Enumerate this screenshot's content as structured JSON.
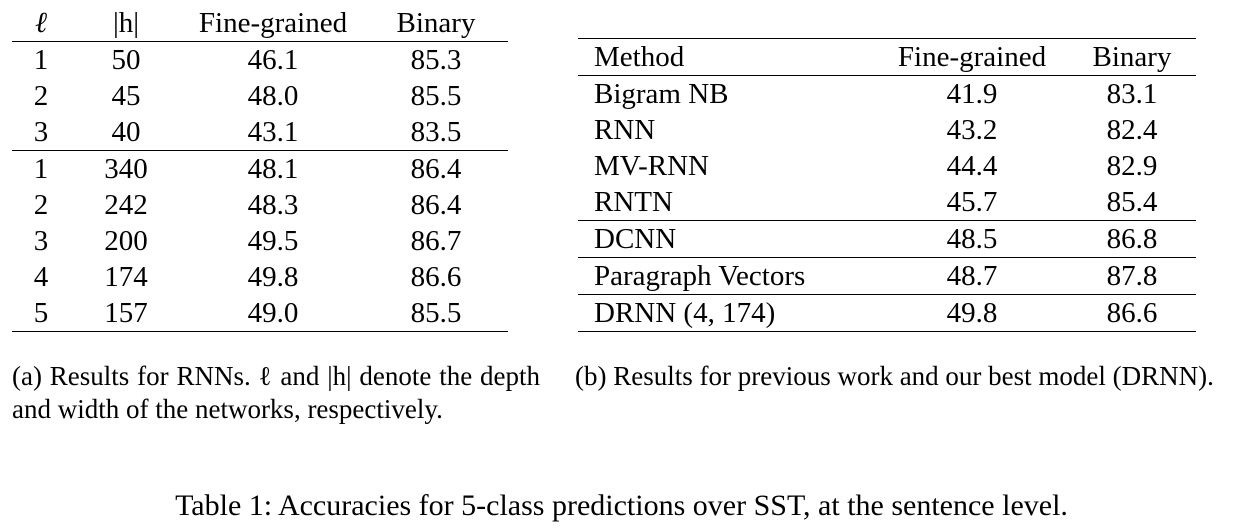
{
  "table_a": {
    "headers": [
      "ℓ",
      "|h|",
      "Fine-grained",
      "Binary"
    ],
    "rows": [
      [
        "1",
        "50",
        "46.1",
        "85.3"
      ],
      [
        "2",
        "45",
        "48.0",
        "85.5"
      ],
      [
        "3",
        "40",
        "43.1",
        "83.5"
      ],
      [
        "1",
        "340",
        "48.1",
        "86.4"
      ],
      [
        "2",
        "242",
        "48.3",
        "86.4"
      ],
      [
        "3",
        "200",
        "49.5",
        "86.7"
      ],
      [
        "4",
        "174",
        "49.8",
        "86.6"
      ],
      [
        "5",
        "157",
        "49.0",
        "85.5"
      ]
    ],
    "caption": "(a) Results for RNNs. ℓ and |h| denote the depth and width of the networks, respectively."
  },
  "table_b": {
    "headers": [
      "Method",
      "Fine-grained",
      "Binary"
    ],
    "rows": [
      [
        "Bigram NB",
        "41.9",
        "83.1"
      ],
      [
        "RNN",
        "43.2",
        "82.4"
      ],
      [
        "MV-RNN",
        "44.4",
        "82.9"
      ],
      [
        "RNTN",
        "45.7",
        "85.4"
      ],
      [
        "DCNN",
        "48.5",
        "86.8"
      ],
      [
        "Paragraph Vectors",
        "48.7",
        "87.8"
      ],
      [
        "DRNN (4, 174)",
        "49.8",
        "86.6"
      ]
    ],
    "caption": "(b) Results for previous work and our best model (DRNN)."
  },
  "main_caption": "Table 1: Accuracies for 5-class predictions over SST, at the sentence level."
}
